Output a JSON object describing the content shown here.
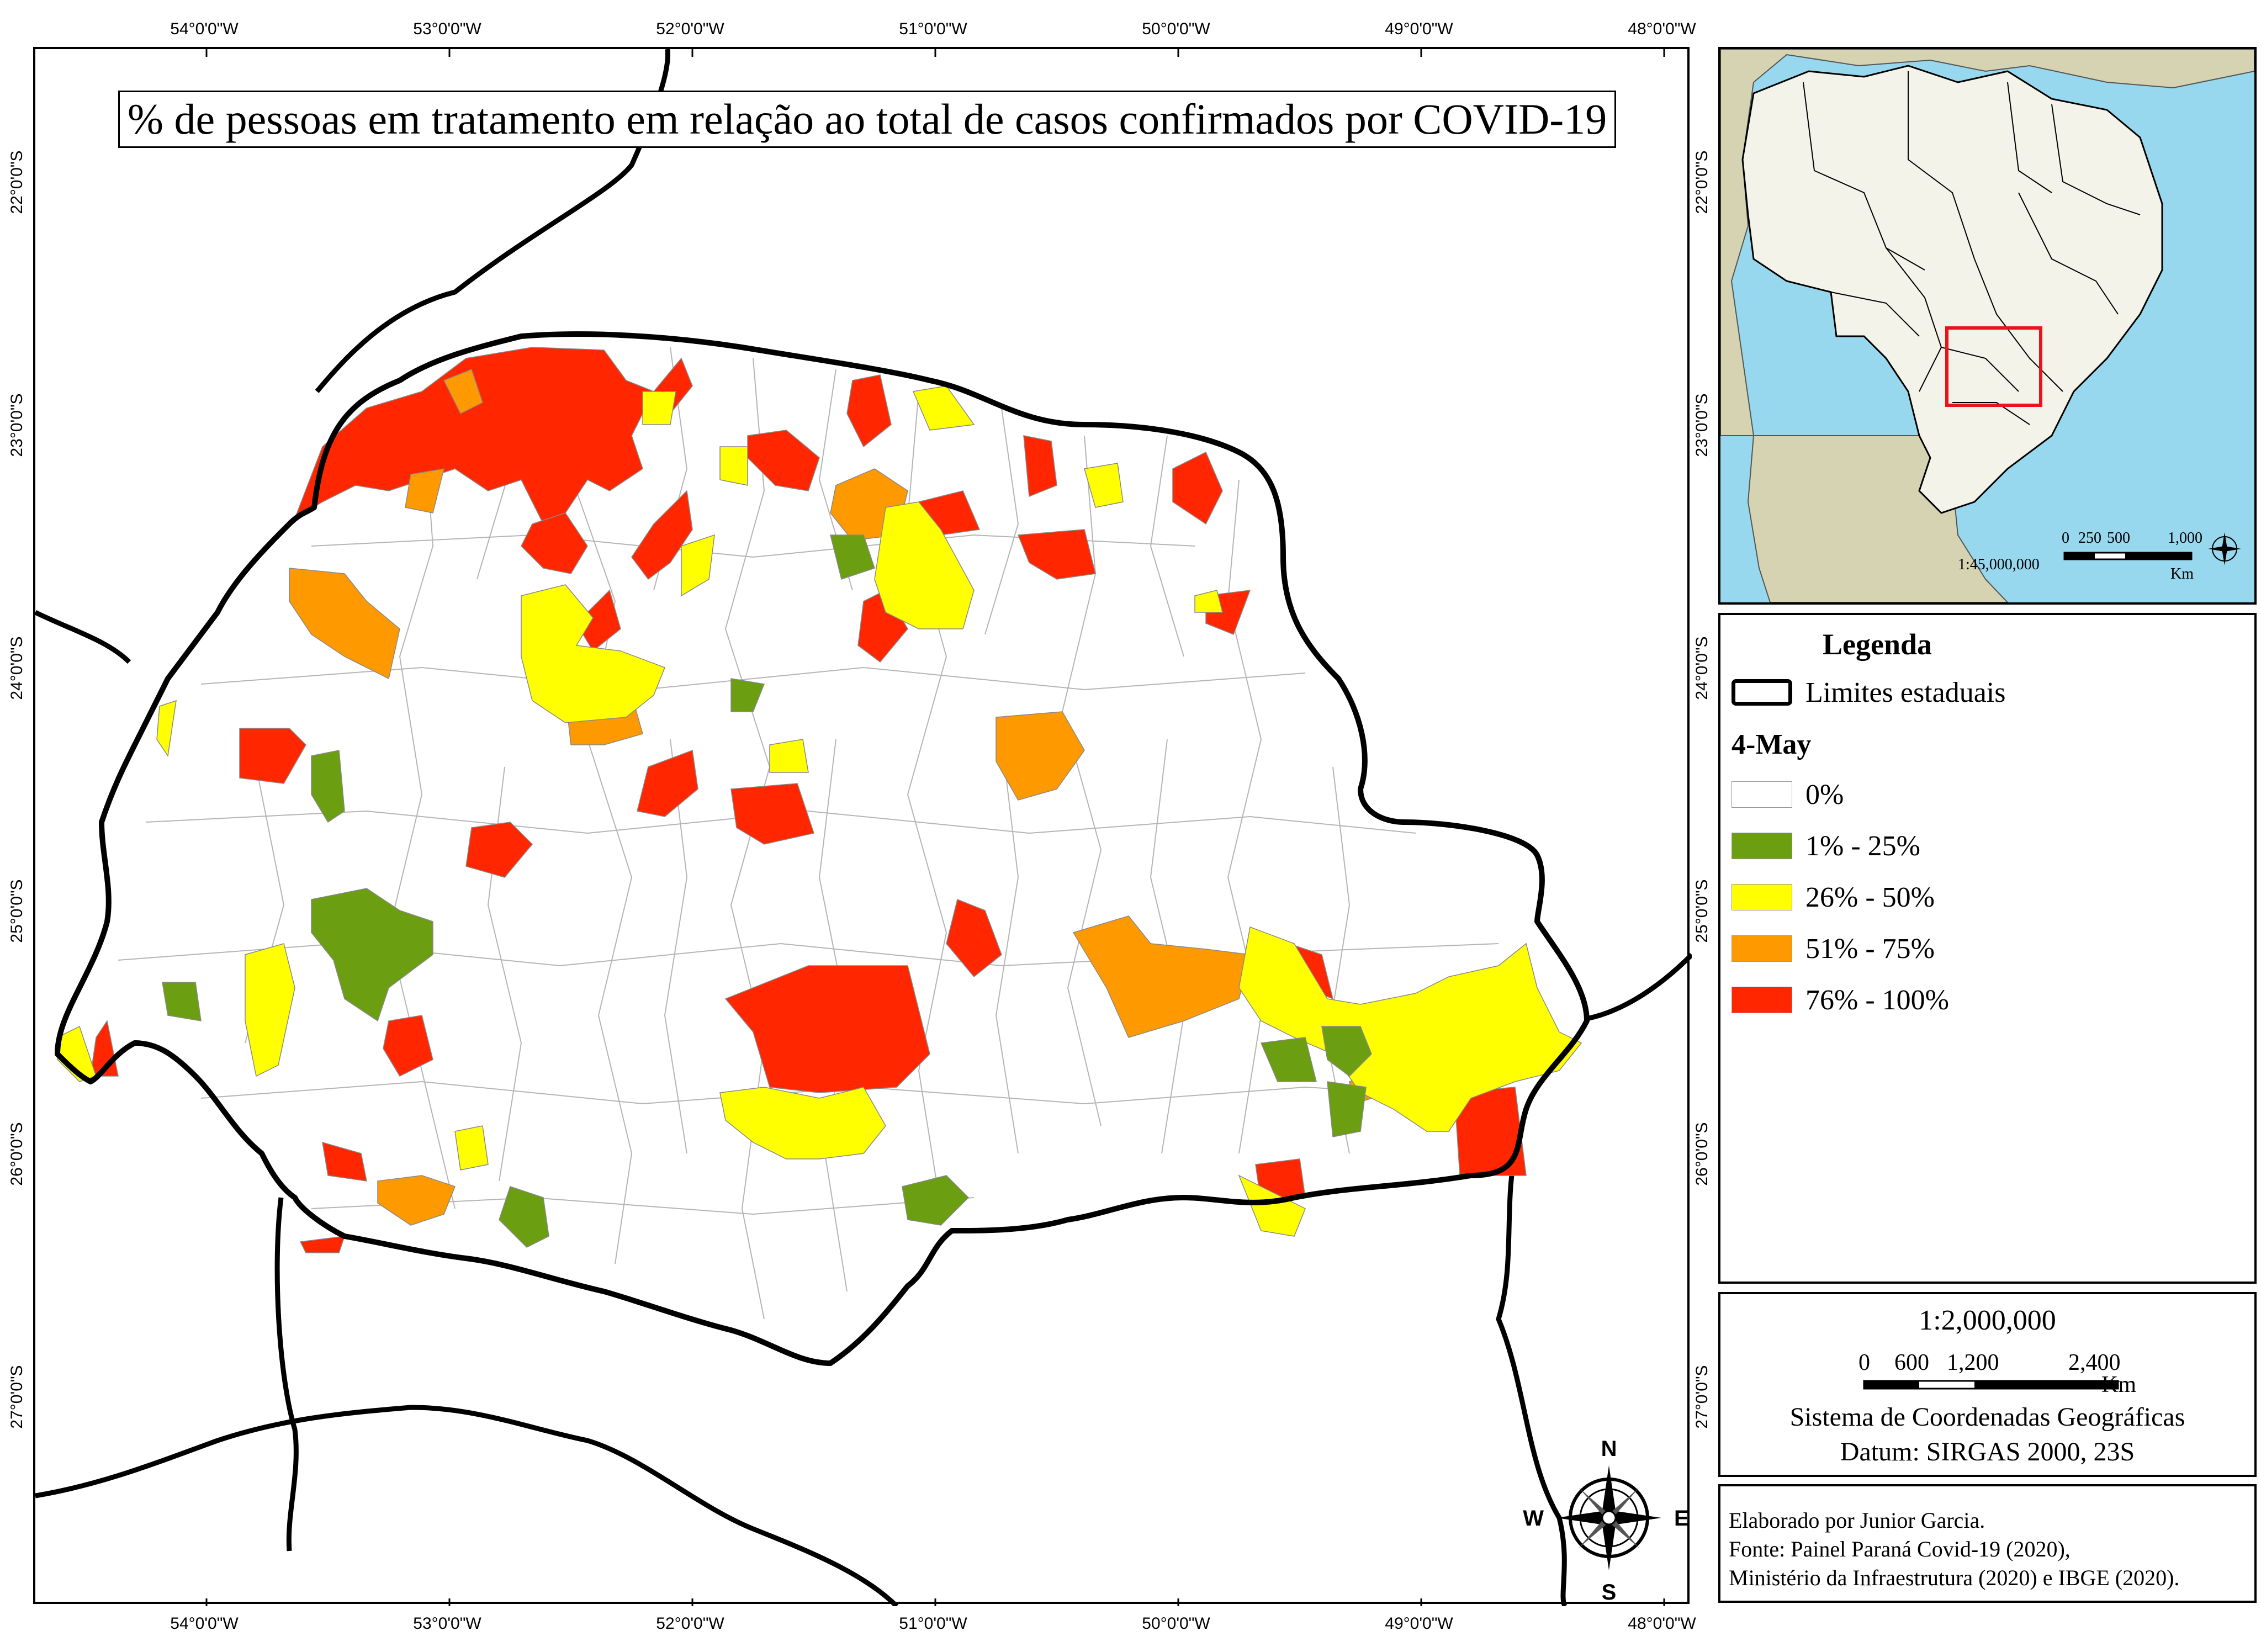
{
  "map": {
    "title": "% de pessoas em tratamento em relação ao total de casos confirmados por COVID-19",
    "lon_ticks": [
      "54°0'0\"W",
      "53°0'0\"W",
      "52°0'0\"W",
      "51°0'0\"W",
      "50°0'0\"W",
      "49°0'0\"W",
      "48°0'0\"W"
    ],
    "lat_ticks": [
      "22°0'0\"S",
      "23°0'0\"S",
      "24°0'0\"S",
      "25°0'0\"S",
      "26°0'0\"S",
      "27°0'0\"S"
    ],
    "compass": {
      "n": "N",
      "s": "S",
      "e": "E",
      "w": "W"
    }
  },
  "colors": {
    "class_0": "#ffffff",
    "class_1": "#6b9e10",
    "class_2": "#ffff00",
    "class_3": "#ff9900",
    "class_4": "#ff2600",
    "ocean": "#97d8ee",
    "land": "#d6d3b2",
    "brazil": "#f4f3e9",
    "highlight": "#e8141b"
  },
  "legend": {
    "title": "Legenda",
    "boundary_label": "Limites estaduais",
    "date_label": "4-May",
    "classes": [
      {
        "label": "0%",
        "color": "#ffffff"
      },
      {
        "label": "1% - 25%",
        "color": "#6b9e10"
      },
      {
        "label": "26% - 50%",
        "color": "#ffff00"
      },
      {
        "label": "51% - 75%",
        "color": "#ff9900"
      },
      {
        "label": "76% - 100%",
        "color": "#ff2600"
      }
    ]
  },
  "scale": {
    "ratio": "1:2,000,000",
    "n0": "0",
    "n1": "600",
    "n2": "1,200",
    "n3": "2,400",
    "unit": "Km",
    "crs": "Sistema de Coordenadas Geográficas",
    "datum": "Datum: SIRGAS 2000, 23S"
  },
  "inset": {
    "ratio": "1:45,000,000",
    "n0": "0",
    "n1": "250",
    "n2": "500",
    "n3": "1,000",
    "unit": "Km"
  },
  "credits": {
    "line1": "Elaborado por Junior Garcia.",
    "line2": "Fonte: Painel Paraná Covid-19 (2020),",
    "line3": "Ministério da Infraestrutura (2020) e IBGE (2020)."
  }
}
